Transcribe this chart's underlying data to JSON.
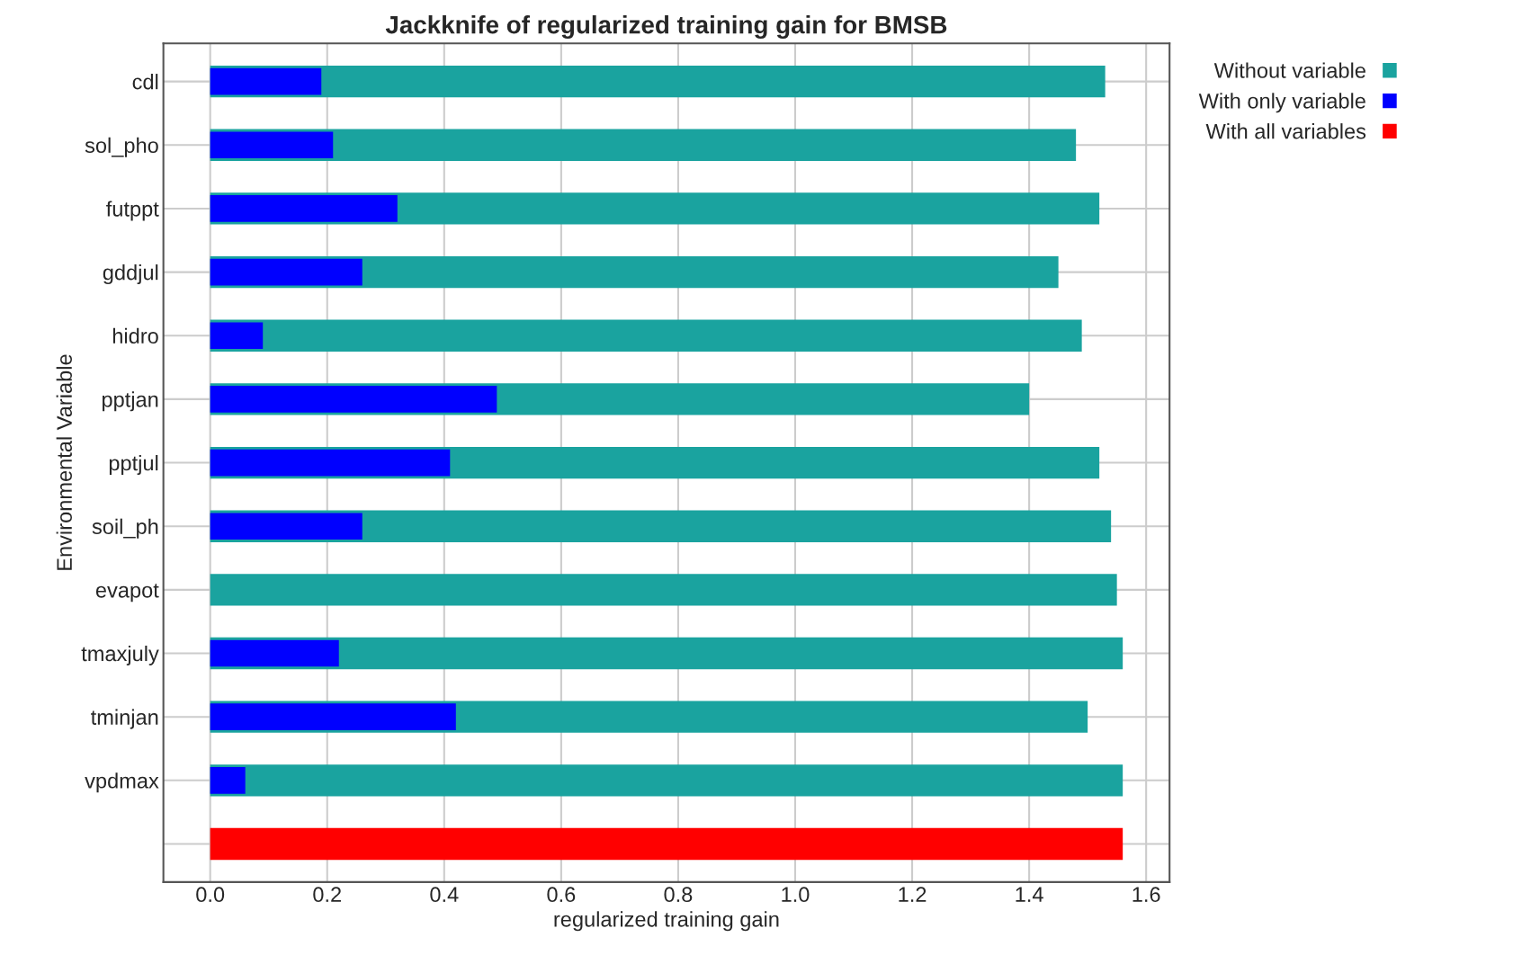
{
  "chart_data": {
    "type": "bar",
    "orientation": "horizontal",
    "title": "Jackknife of regularized training gain for BMSB",
    "xlabel": "regularized training gain",
    "ylabel": "Environmental Variable",
    "categories": [
      "cdl",
      "sol_pho",
      "futppt",
      "gddjul",
      "hidro",
      "pptjan",
      "pptjul",
      "soil_ph",
      "evapot",
      "tmaxjuly",
      "tminjan",
      "vpdmax",
      null
    ],
    "series": [
      {
        "name": "Without variable",
        "color": "#1aa39f",
        "values": [
          1.53,
          1.48,
          1.52,
          1.45,
          1.49,
          1.4,
          1.52,
          1.54,
          1.55,
          1.56,
          1.5,
          1.56,
          null
        ]
      },
      {
        "name": "With only variable",
        "color": "#0000ff",
        "values": [
          0.19,
          0.21,
          0.32,
          0.26,
          0.09,
          0.49,
          0.41,
          0.26,
          null,
          0.22,
          0.42,
          0.06,
          null
        ]
      },
      {
        "name": "With all variables",
        "color": "#ff0000",
        "values": [
          null,
          null,
          null,
          null,
          null,
          null,
          null,
          null,
          null,
          null,
          null,
          null,
          1.56
        ]
      }
    ],
    "xlim": [
      -0.08,
      1.64
    ],
    "xticks": [
      {
        "value": 0,
        "label": "0.0"
      },
      {
        "value": 0.2,
        "label": "0.2"
      },
      {
        "value": 0.4,
        "label": "0.4"
      },
      {
        "value": 0.6,
        "label": "0.6"
      },
      {
        "value": 0.8,
        "label": "0.8"
      },
      {
        "value": 1.0,
        "label": "1.0"
      },
      {
        "value": 1.2,
        "label": "1.2"
      },
      {
        "value": 1.4,
        "label": "1.4"
      },
      {
        "value": 1.6,
        "label": "1.6"
      }
    ],
    "grid": true,
    "legend": "top right"
  }
}
